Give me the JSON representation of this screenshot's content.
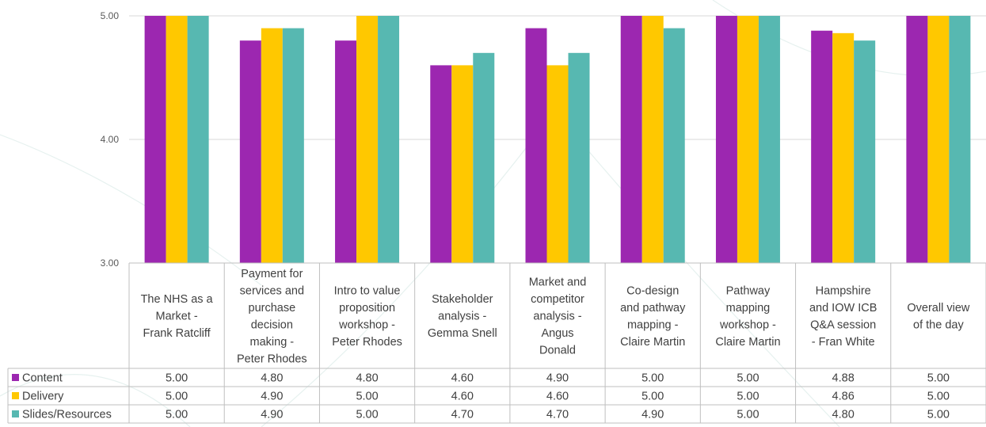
{
  "chart_data": {
    "type": "bar",
    "title": "",
    "xlabel": "",
    "ylabel": "",
    "ylim": [
      3,
      5
    ],
    "yticks": [
      "5.00",
      "4.00",
      "3.00"
    ],
    "grid": true,
    "legend": "data-table-left",
    "categories": [
      [
        "The NHS as a",
        "Market -",
        "Frank Ratcliff"
      ],
      [
        "Payment for",
        "services and",
        "purchase",
        "decision",
        "making -",
        "Peter Rhodes"
      ],
      [
        "Intro to value",
        "proposition",
        "workshop -",
        "Peter Rhodes"
      ],
      [
        "Stakeholder",
        "analysis -",
        "Gemma Snell"
      ],
      [
        "Market and",
        "competitor",
        "analysis -",
        "Angus",
        "Donald"
      ],
      [
        "Co-design",
        "and pathway",
        "mapping -",
        "Claire Martin"
      ],
      [
        "Pathway",
        "mapping",
        "workshop -",
        "Claire Martin"
      ],
      [
        "Hampshire",
        "and IOW ICB",
        "Q&A session",
        "- Fran White"
      ],
      [
        "Overall view",
        "of the day"
      ]
    ],
    "series": [
      {
        "name": "Content",
        "color": "#9c27b0",
        "values": [
          5.0,
          4.8,
          4.8,
          4.6,
          4.9,
          5.0,
          5.0,
          4.88,
          5.0
        ],
        "labels": [
          "5.00",
          "4.80",
          "4.80",
          "4.60",
          "4.90",
          "5.00",
          "5.00",
          "4.88",
          "5.00"
        ]
      },
      {
        "name": "Delivery",
        "color": "#ffc800",
        "values": [
          5.0,
          4.9,
          5.0,
          4.6,
          4.6,
          5.0,
          5.0,
          4.86,
          5.0
        ],
        "labels": [
          "5.00",
          "4.90",
          "5.00",
          "4.60",
          "4.60",
          "5.00",
          "5.00",
          "4.86",
          "5.00"
        ]
      },
      {
        "name": "Slides/Resources",
        "color": "#57b8b1",
        "values": [
          5.0,
          4.9,
          5.0,
          4.7,
          4.7,
          4.9,
          5.0,
          4.8,
          5.0
        ],
        "labels": [
          "5.00",
          "4.90",
          "5.00",
          "4.70",
          "4.70",
          "4.90",
          "5.00",
          "4.80",
          "5.00"
        ]
      }
    ]
  }
}
